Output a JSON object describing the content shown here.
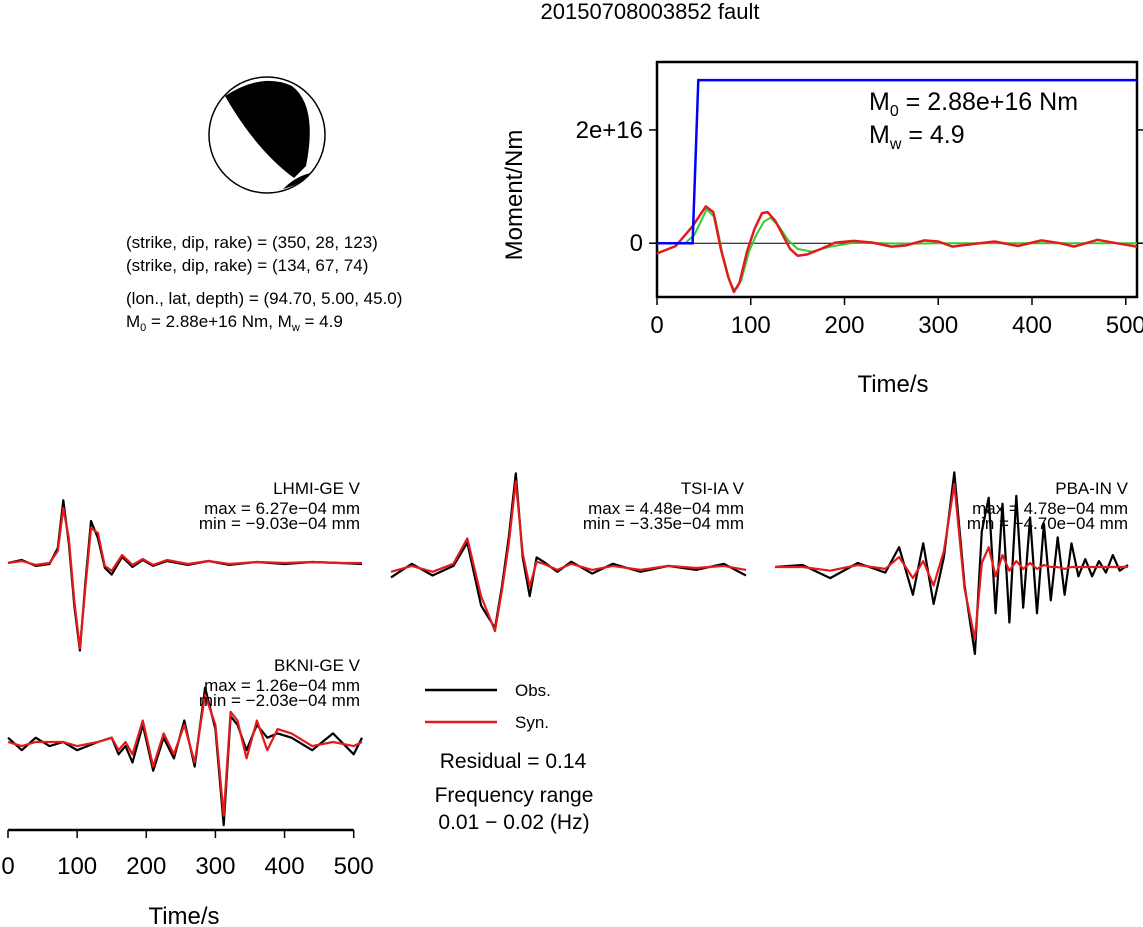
{
  "title": "20150708003852 fault",
  "mechanism": {
    "plane1": "(strike, dip, rake) = (350, 28, 123)",
    "plane2": "(strike, dip, rake) = (134, 67, 74)",
    "location": "(lon., lat, depth) = (94.70, 5.00, 45.0)",
    "moment_prefix": "M",
    "moment_sub": "0",
    "moment_mid": " = 2.88e+16 Nm, M",
    "mw_sub": "w",
    "mw_suffix": " = 4.9"
  },
  "stf_panel": {
    "ylabel": "Moment/Nm",
    "xlabel": "Time/s",
    "m0_prefix": "M",
    "m0_sub": "0",
    "m0_value": " = 2.88e+16 Nm",
    "mw_prefix": "M",
    "mw_sub": "w",
    "mw_value": " = 4.9"
  },
  "waveform_xlabel": "Time/s",
  "legend": {
    "obs": "Obs.",
    "syn": "Syn.",
    "residual": "Residual = 0.14",
    "freq_title": "Frequency range",
    "freq_value": "0.01 − 0.02 (Hz)"
  },
  "colors": {
    "observed": "#000000",
    "synthetic": "#e31a1c",
    "moment": "#0000ff",
    "green": "#33cc33"
  },
  "chart_data": [
    {
      "type": "line",
      "name": "moment-function",
      "xlim": [
        0,
        512
      ],
      "ylim": [
        -9500000000000000.0,
        3.2e+16
      ],
      "x_ticks": [
        0,
        100,
        200,
        300,
        400,
        500
      ],
      "y_ticks": [
        {
          "value": 0,
          "label": "0"
        },
        {
          "value": 2e+16,
          "label": "2e+16"
        }
      ],
      "cumulative_moment": {
        "x": [
          0,
          38,
          44,
          512
        ],
        "y": [
          0,
          0,
          2.88e+16,
          2.88e+16
        ]
      },
      "wave_red": {
        "x": [
          0,
          20,
          38,
          52,
          60,
          68,
          76,
          82,
          88,
          96,
          104,
          112,
          118,
          126,
          134,
          142,
          150,
          160,
          175,
          190,
          210,
          230,
          250,
          265,
          285,
          300,
          315,
          335,
          360,
          385,
          410,
          430,
          445,
          470,
          490,
          512
        ],
        "y": [
          -1800000000000000.0,
          -500000000000000.0,
          3000000000000000.0,
          6500000000000000.0,
          5500000000000000.0,
          -1000000000000000.0,
          -6000000000000000.0,
          -8600000000000000.0,
          -7000000000000000.0,
          -1500000000000000.0,
          2500000000000000.0,
          5300000000000000.0,
          5500000000000000.0,
          4000000000000000.0,
          1500000000000000.0,
          -1000000000000000.0,
          -2200000000000000.0,
          -2000000000000000.0,
          -1000000000000000.0,
          100000000000000.0,
          400000000000000.0,
          100000000000000.0,
          -600000000000000.0,
          -400000000000000.0,
          500000000000000.0,
          300000000000000.0,
          -600000000000000.0,
          -200000000000000.0,
          300000000000000.0,
          -500000000000000.0,
          500000000000000.0,
          0.0,
          -600000000000000.0,
          600000000000000.0,
          0.0,
          -600000000000000.0
        ]
      },
      "wave_green": {
        "x": [
          0,
          30,
          40,
          53,
          62,
          70,
          78,
          83,
          90,
          98,
          106,
          114,
          121,
          130,
          140,
          150,
          165,
          185,
          210,
          240,
          270,
          300,
          340,
          380,
          420,
          460,
          512
        ],
        "y": [
          0,
          0,
          1500000000000000.0,
          6000000000000000.0,
          4500000000000000.0,
          -2000000000000000.0,
          -7000000000000000.0,
          -8400000000000000.0,
          -6500000000000000.0,
          -1500000000000000.0,
          1500000000000000.0,
          3800000000000000.0,
          4500000000000000.0,
          3000000000000000.0,
          500000000000000.0,
          -1000000000000000.0,
          -1500000000000000.0,
          -600000000000000.0,
          100000000000000.0,
          0.0,
          -100000000000000.0,
          0.0,
          0.0,
          0.0,
          0.0,
          0.0,
          0.0
        ]
      }
    },
    {
      "type": "line",
      "name": "LHMI-GE V",
      "stats": [
        "max = 6.27e−04 mm",
        "min = −9.03e−04 mm"
      ],
      "xlim": [
        0,
        512
      ],
      "ylim": [
        -0.00096,
        0.00063
      ],
      "observed": {
        "x": [
          0,
          20,
          40,
          60,
          72,
          80,
          88,
          96,
          104,
          112,
          120,
          130,
          140,
          150,
          165,
          180,
          195,
          210,
          230,
          260,
          290,
          320,
          360,
          400,
          440,
          480,
          512
        ],
        "y": [
          0,
          3e-05,
          -3e-05,
          -1e-05,
          0.00015,
          0.000627,
          0.0002,
          -0.00045,
          -0.000903,
          -0.0002,
          0.00042,
          0.00025,
          -5e-05,
          -0.00012,
          6e-05,
          -4e-05,
          3e-05,
          -3e-05,
          2e-05,
          -2e-05,
          2e-05,
          -2e-05,
          1e-05,
          -1e-05,
          1e-05,
          0.0,
          -1e-05
        ]
      },
      "synthetic": {
        "x": [
          0,
          20,
          40,
          60,
          72,
          80,
          88,
          96,
          104,
          112,
          120,
          130,
          140,
          150,
          165,
          180,
          195,
          210,
          230,
          260,
          290,
          320,
          360,
          400,
          440,
          480,
          512
        ],
        "y": [
          0,
          2e-05,
          -2e-05,
          0.0,
          0.00012,
          0.00055,
          0.00025,
          -0.0004,
          -0.00088,
          -0.00025,
          0.00035,
          0.0003,
          -3e-05,
          -8e-05,
          8e-05,
          -2e-05,
          4e-05,
          -2e-05,
          3e-05,
          -1e-05,
          2e-05,
          -1e-05,
          1e-05,
          0.0,
          1e-05,
          0.0,
          0.0
        ]
      }
    },
    {
      "type": "line",
      "name": "TSI-IA V",
      "stats": [
        "max = 4.48e−04 mm",
        "min = −3.35e−04 mm"
      ],
      "xlim": [
        0,
        512
      ],
      "ylim": [
        -0.00034,
        0.00045
      ],
      "observed": {
        "x": [
          0,
          30,
          60,
          90,
          110,
          130,
          150,
          160,
          170,
          180,
          190,
          200,
          210,
          220,
          240,
          260,
          290,
          320,
          360,
          400,
          440,
          480,
          512
        ],
        "y": [
          -5e-05,
          2e-05,
          -4e-05,
          1e-05,
          0.00012,
          -0.0002,
          -0.00032,
          -0.0001,
          0.00015,
          0.000448,
          5e-05,
          -0.00015,
          5e-05,
          3e-05,
          -2e-05,
          3e-05,
          -3e-05,
          2e-05,
          -2e-05,
          1e-05,
          -1e-05,
          2e-05,
          -4e-05
        ]
      },
      "synthetic": {
        "x": [
          0,
          30,
          60,
          90,
          110,
          130,
          150,
          160,
          170,
          180,
          190,
          200,
          210,
          220,
          240,
          260,
          290,
          320,
          360,
          400,
          440,
          480,
          512
        ],
        "y": [
          -2e-05,
          1e-05,
          -2e-05,
          2e-05,
          0.00014,
          -0.00015,
          -0.000335,
          -0.00012,
          0.00012,
          0.00041,
          7e-05,
          -0.0001,
          3e-05,
          2e-05,
          -1e-05,
          2e-05,
          -1e-05,
          1e-05,
          -1e-05,
          1e-05,
          0.0,
          1e-05,
          -1e-05
        ]
      }
    },
    {
      "type": "line",
      "name": "PBA-IN V",
      "stats": [
        "max = 4.78e−04 mm",
        "min = −4.70e−04 mm"
      ],
      "xlim": [
        0,
        512
      ],
      "ylim": [
        -0.00047,
        0.00048
      ],
      "observed": {
        "x": [
          0,
          40,
          80,
          120,
          160,
          180,
          200,
          215,
          230,
          245,
          260,
          275,
          290,
          300,
          310,
          320,
          330,
          340,
          350,
          360,
          370,
          380,
          390,
          400,
          410,
          420,
          430,
          440,
          450,
          460,
          470,
          480,
          490,
          500,
          512
        ],
        "y": [
          0,
          1e-05,
          -6e-05,
          2e-05,
          -3e-05,
          0.0001,
          -0.00015,
          0.00012,
          -0.0002,
          5e-05,
          0.000478,
          -0.0001,
          -0.00047,
          0.00018,
          0.00035,
          -0.00025,
          0.00032,
          -0.0003,
          0.00036,
          -0.00022,
          0.00025,
          -0.00025,
          0.00022,
          -0.00018,
          0.00015,
          -0.00015,
          0.00012,
          -5e-05,
          4e-05,
          -5e-05,
          3e-05,
          -3e-05,
          6e-05,
          -2e-05,
          1e-05
        ]
      },
      "synthetic": {
        "x": [
          0,
          40,
          80,
          120,
          160,
          180,
          200,
          215,
          230,
          245,
          260,
          275,
          290,
          300,
          310,
          320,
          330,
          340,
          350,
          360,
          370,
          380,
          390,
          400,
          410,
          420,
          430,
          440,
          450,
          460,
          470,
          480,
          490,
          500,
          512
        ],
        "y": [
          0,
          0.0,
          -2e-05,
          1e-05,
          -1e-05,
          5e-05,
          -6e-05,
          3e-05,
          -0.0001,
          8e-05,
          0.00042,
          -0.00012,
          -0.00039,
          2e-05,
          0.0001,
          -5e-05,
          6e-05,
          -2e-05,
          3e-05,
          -1e-05,
          2e-05,
          -1e-05,
          1e-05,
          0.0,
          0.0,
          -1e-05,
          0.0,
          0.0,
          0.0,
          0.0,
          0.0,
          0.0,
          0.0,
          0.0,
          0.0
        ]
      }
    },
    {
      "type": "line",
      "name": "BKNI-GE V",
      "stats": [
        "max = 1.26e−04 mm",
        "min = −2.03e−04 mm"
      ],
      "xlim": [
        0,
        512
      ],
      "ylim": [
        -0.00021,
        0.00013
      ],
      "x_ticks": [
        0,
        100,
        200,
        300,
        400,
        500
      ],
      "observed": {
        "x": [
          0,
          20,
          40,
          60,
          80,
          100,
          130,
          150,
          160,
          170,
          180,
          195,
          210,
          225,
          240,
          255,
          270,
          285,
          300,
          312,
          322,
          332,
          345,
          360,
          375,
          390,
          410,
          440,
          470,
          500,
          512
        ],
        "y": [
          1e-05,
          -2e-05,
          1e-05,
          -1e-05,
          0.0,
          -2e-05,
          0.0,
          1e-05,
          -3e-05,
          -1e-05,
          -5e-05,
          4e-05,
          -7e-05,
          1e-05,
          -4e-05,
          5e-05,
          -6e-05,
          0.000126,
          3e-05,
          -0.000203,
          6e-05,
          4e-05,
          -2e-05,
          4e-05,
          1e-05,
          2e-05,
          1e-05,
          -2e-05,
          2e-05,
          -3e-05,
          1e-05
        ]
      },
      "synthetic": {
        "x": [
          0,
          20,
          40,
          60,
          80,
          100,
          130,
          150,
          160,
          170,
          180,
          195,
          210,
          225,
          240,
          255,
          270,
          285,
          300,
          312,
          322,
          332,
          345,
          360,
          375,
          390,
          410,
          440,
          470,
          500,
          512
        ],
        "y": [
          0.0,
          -1e-05,
          0.0,
          0.0,
          0.0,
          -1e-05,
          0.0,
          1e-05,
          -2e-05,
          0.0,
          -3e-05,
          5e-05,
          -6e-05,
          2e-05,
          -3e-05,
          4e-05,
          -5e-05,
          0.00011,
          4e-05,
          -0.00018,
          7e-05,
          5e-05,
          -4e-05,
          5e-05,
          -2e-05,
          3e-05,
          2e-05,
          -1e-05,
          0.0,
          -1e-05,
          0.0
        ]
      }
    }
  ]
}
